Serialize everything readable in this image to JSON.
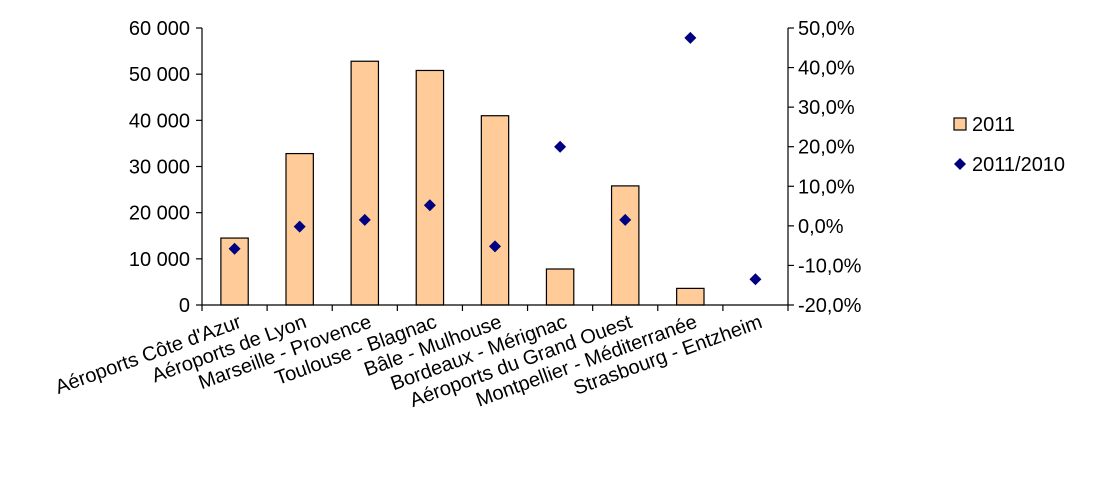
{
  "chart_data": {
    "type": "bar",
    "categories": [
      "Aéroports Côte d'Azur",
      "Aéroports de Lyon",
      "Marseille - Provence",
      "Toulouse - Blagnac",
      "Bâle - Mulhouse",
      "Bordeaux - Mérignac",
      "Aéroports du Grand Ouest",
      "Montpellier - Méditerranée",
      "Strasbourg - Entzheim"
    ],
    "series": [
      {
        "name": "2011",
        "type": "bar",
        "axis": "left",
        "color": "#FFCC99",
        "values": [
          14500,
          32800,
          52800,
          50800,
          41000,
          7800,
          25800,
          3600,
          0
        ]
      },
      {
        "name": "2011/2010",
        "type": "scatter",
        "axis": "right",
        "color": "#000080",
        "values": [
          -5.8,
          -0.2,
          1.5,
          5.2,
          -5.2,
          20.0,
          1.5,
          47.5,
          -13.5
        ]
      }
    ],
    "y_left": {
      "min": 0,
      "max": 60000,
      "ticks": [
        "0",
        "10 000",
        "20 000",
        "30 000",
        "40 000",
        "50 000",
        "60 000"
      ]
    },
    "y_right": {
      "min": -20,
      "max": 50,
      "ticks": [
        "-20,0%",
        "-10,0%",
        "0,0%",
        "10,0%",
        "20,0%",
        "30,0%",
        "40,0%",
        "50,0%"
      ]
    },
    "title": "",
    "xlabel": "",
    "ylabel": "",
    "grid": false,
    "legend": {
      "position": "right"
    }
  }
}
